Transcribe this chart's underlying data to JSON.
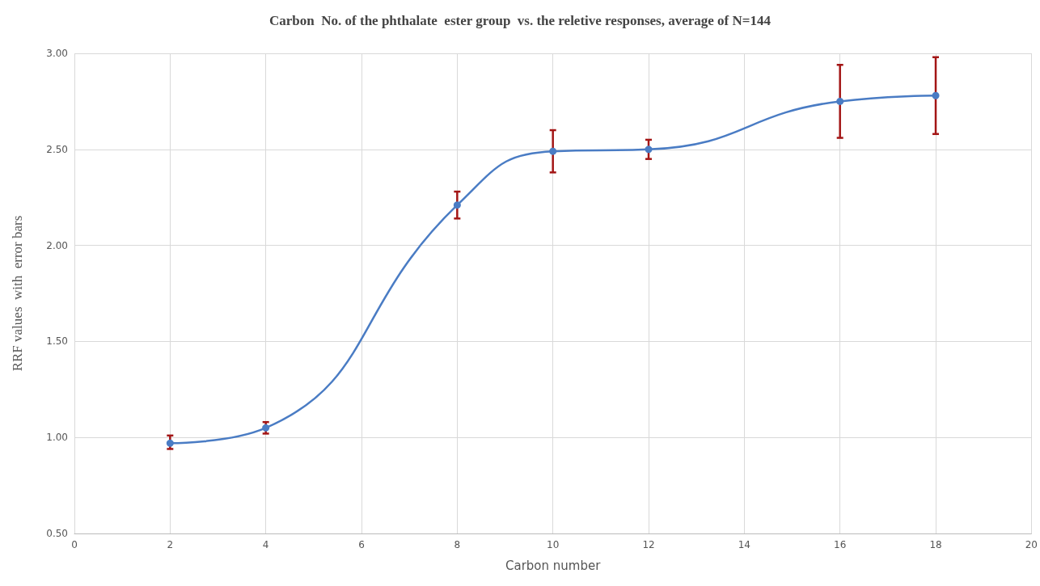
{
  "chart_data": {
    "type": "line",
    "title": "Carbon  No. of the phthalate  ester group  vs. the reletive responses, average of N=144",
    "xlabel": "Carbon number",
    "ylabel": "RRF values  with  error bars",
    "x": [
      2,
      4,
      8,
      10,
      12,
      16,
      18
    ],
    "series": [
      {
        "color": "#4a7cc4",
        "values": [
          0.97,
          1.05,
          2.21,
          2.49,
          2.5,
          2.75,
          2.78
        ],
        "errors": [
          [
            0.94,
            1.01
          ],
          [
            1.02,
            1.08
          ],
          [
            2.14,
            2.28
          ],
          [
            2.38,
            2.6
          ],
          [
            2.45,
            2.55
          ],
          [
            2.56,
            2.94
          ],
          [
            2.58,
            2.98
          ]
        ]
      }
    ],
    "xlim": [
      0,
      20
    ],
    "xticks": [
      0,
      2,
      4,
      6,
      8,
      10,
      12,
      14,
      16,
      18,
      20
    ],
    "ylim": [
      0.5,
      3
    ],
    "yticks": [
      {
        "value": 0.5,
        "label": "0.50"
      },
      {
        "value": 1,
        "label": "1.00"
      },
      {
        "value": 1.5,
        "label": "1.50"
      },
      {
        "value": 2,
        "label": "2.00"
      },
      {
        "value": 2.5,
        "label": "2.50"
      },
      {
        "value": 3,
        "label": "3.00"
      }
    ],
    "grid": true,
    "marker": "circle",
    "line_style": "solid"
  }
}
